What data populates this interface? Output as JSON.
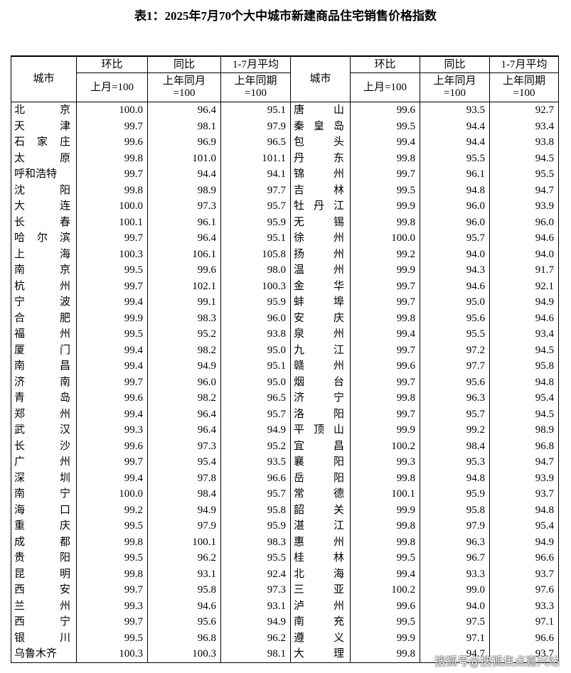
{
  "title": "表1：2025年7月70个大中城市新建商品住宅销售价格指数",
  "table": {
    "header": {
      "city": "城市",
      "groups": [
        {
          "name": "环比",
          "sub": [
            "上月=100"
          ]
        },
        {
          "name": "同比",
          "sub": [
            "上年同月",
            "=100"
          ]
        },
        {
          "name": "1-7月平均",
          "sub": [
            "上年同期",
            "=100"
          ]
        }
      ]
    },
    "rows": [
      [
        "北京",
        "100.0",
        "96.4",
        "95.1",
        "唐山",
        "99.6",
        "93.5",
        "92.7"
      ],
      [
        "天津",
        "99.7",
        "98.1",
        "97.9",
        "秦皇岛",
        "99.5",
        "94.4",
        "93.4"
      ],
      [
        "石家庄",
        "99.6",
        "96.9",
        "96.5",
        "包头",
        "99.4",
        "94.4",
        "93.8"
      ],
      [
        "太原",
        "99.8",
        "101.0",
        "101.1",
        "丹东",
        "99.8",
        "95.5",
        "94.5"
      ],
      [
        "呼和浩特",
        "99.7",
        "94.4",
        "94.1",
        "锦州",
        "99.7",
        "96.1",
        "95.5"
      ],
      [
        "沈阳",
        "99.8",
        "98.9",
        "97.7",
        "吉林",
        "99.5",
        "94.8",
        "94.7"
      ],
      [
        "大连",
        "100.0",
        "97.3",
        "95.7",
        "牡丹江",
        "99.9",
        "96.0",
        "93.9"
      ],
      [
        "长春",
        "100.1",
        "96.1",
        "95.9",
        "无锡",
        "99.8",
        "96.0",
        "96.0"
      ],
      [
        "哈尔滨",
        "99.7",
        "96.4",
        "95.1",
        "徐州",
        "100.0",
        "95.7",
        "94.6"
      ],
      [
        "上海",
        "100.3",
        "106.1",
        "105.8",
        "扬州",
        "99.2",
        "94.0",
        "94.0"
      ],
      [
        "南京",
        "99.5",
        "99.6",
        "98.0",
        "温州",
        "99.9",
        "94.3",
        "91.7"
      ],
      [
        "杭州",
        "99.7",
        "102.1",
        "100.3",
        "金华",
        "99.7",
        "94.6",
        "92.1"
      ],
      [
        "宁波",
        "99.4",
        "99.1",
        "95.9",
        "蚌埠",
        "99.7",
        "95.0",
        "94.9"
      ],
      [
        "合肥",
        "99.9",
        "98.3",
        "96.0",
        "安庆",
        "99.8",
        "95.6",
        "94.6"
      ],
      [
        "福州",
        "99.5",
        "95.2",
        "93.8",
        "泉州",
        "99.4",
        "95.5",
        "93.4"
      ],
      [
        "厦门",
        "99.4",
        "98.2",
        "95.0",
        "九江",
        "99.7",
        "97.2",
        "94.5"
      ],
      [
        "南昌",
        "99.4",
        "94.9",
        "95.1",
        "赣州",
        "99.6",
        "97.7",
        "95.8"
      ],
      [
        "济南",
        "99.7",
        "96.0",
        "95.0",
        "烟台",
        "99.7",
        "95.6",
        "94.8"
      ],
      [
        "青岛",
        "99.6",
        "98.2",
        "96.5",
        "济宁",
        "99.8",
        "96.3",
        "95.4"
      ],
      [
        "郑州",
        "99.4",
        "96.4",
        "95.7",
        "洛阳",
        "99.7",
        "95.7",
        "94.5"
      ],
      [
        "武汉",
        "99.3",
        "96.4",
        "94.9",
        "平顶山",
        "99.9",
        "99.2",
        "98.9"
      ],
      [
        "长沙",
        "99.6",
        "97.3",
        "95.2",
        "宜昌",
        "100.2",
        "98.4",
        "96.8"
      ],
      [
        "广州",
        "99.7",
        "95.4",
        "93.5",
        "襄阳",
        "99.3",
        "95.3",
        "94.7"
      ],
      [
        "深圳",
        "99.4",
        "97.8",
        "96.6",
        "岳阳",
        "99.8",
        "94.8",
        "93.9"
      ],
      [
        "南宁",
        "100.0",
        "98.4",
        "95.7",
        "常德",
        "100.1",
        "95.9",
        "93.7"
      ],
      [
        "海口",
        "99.2",
        "94.9",
        "95.8",
        "韶关",
        "99.9",
        "95.8",
        "94.8"
      ],
      [
        "重庆",
        "99.5",
        "97.9",
        "95.9",
        "湛江",
        "99.8",
        "97.9",
        "95.4"
      ],
      [
        "成都",
        "99.8",
        "100.1",
        "98.3",
        "惠州",
        "99.8",
        "96.3",
        "94.9"
      ],
      [
        "贵阳",
        "99.5",
        "96.2",
        "95.5",
        "桂林",
        "99.5",
        "96.7",
        "96.6"
      ],
      [
        "昆明",
        "99.8",
        "93.1",
        "92.4",
        "北海",
        "99.4",
        "93.3",
        "93.7"
      ],
      [
        "西安",
        "99.7",
        "95.8",
        "97.3",
        "三亚",
        "100.2",
        "99.0",
        "97.6"
      ],
      [
        "兰州",
        "99.3",
        "94.6",
        "93.1",
        "泸州",
        "99.6",
        "94.0",
        "93.3"
      ],
      [
        "西宁",
        "99.7",
        "95.6",
        "94.9",
        "南充",
        "99.5",
        "97.5",
        "97.1"
      ],
      [
        "银川",
        "99.5",
        "96.8",
        "96.2",
        "遵义",
        "99.9",
        "97.1",
        "96.6"
      ],
      [
        "乌鲁木齐",
        "100.3",
        "100.3",
        "98.1",
        "大理",
        "99.8",
        "94.7",
        "93.7"
      ]
    ]
  },
  "watermark": "搜狐号@搜狐焦点嘉兴站"
}
